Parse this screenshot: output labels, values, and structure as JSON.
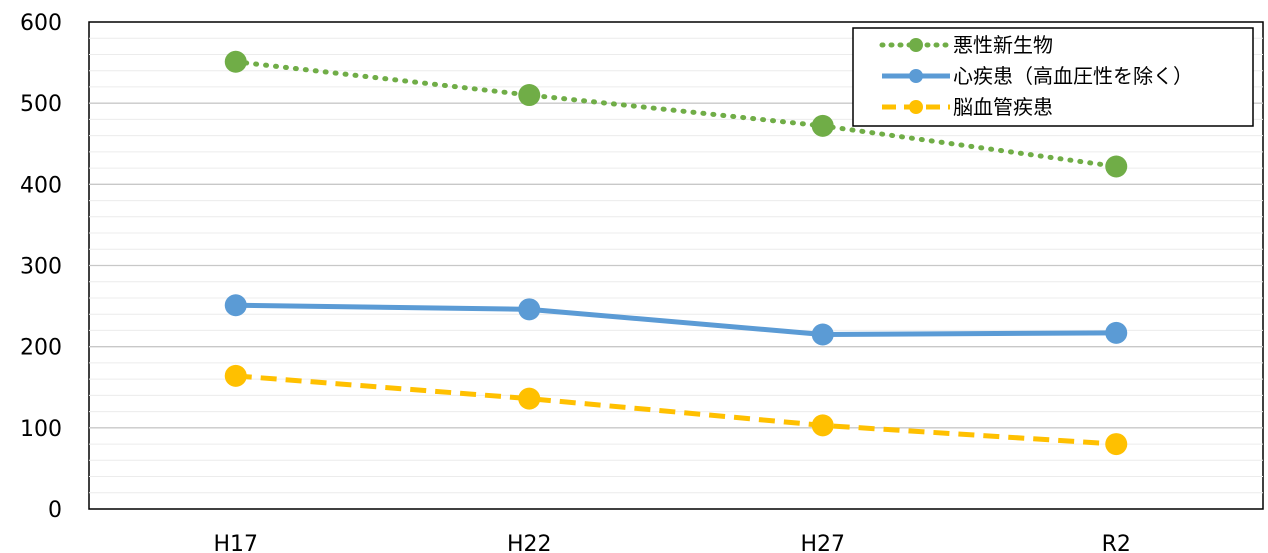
{
  "chart_data": {
    "type": "line",
    "categories": [
      "H17",
      "H22",
      "H27",
      "R2"
    ],
    "series": [
      {
        "name": "悪性新生物",
        "values": [
          551,
          510,
          472,
          422
        ],
        "color": "#70AD47",
        "line_style": "dotted"
      },
      {
        "name": "心疾患（高血圧性を除く）",
        "values": [
          251,
          246,
          215,
          217
        ],
        "color": "#5B9BD5",
        "line_style": "solid"
      },
      {
        "name": "脳血管疾患",
        "values": [
          164,
          136,
          103,
          80
        ],
        "color": "#FFC000",
        "line_style": "dashed"
      }
    ],
    "ylim": [
      0,
      600
    ],
    "y_ticks": [
      "0",
      "100",
      "200",
      "300",
      "400",
      "500",
      "600"
    ],
    "xlabel": "",
    "ylabel": "",
    "title": "",
    "grid": true,
    "legend_position": "top-right"
  }
}
